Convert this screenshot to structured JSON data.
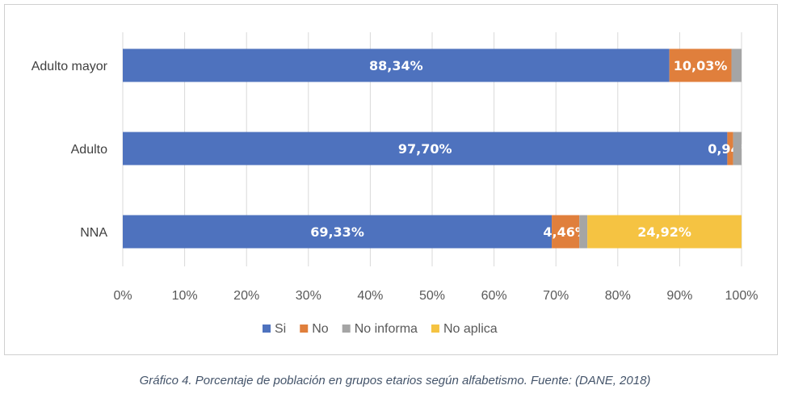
{
  "chart_data": {
    "type": "bar",
    "orientation": "horizontal",
    "stacked": true,
    "categories": [
      "Adulto mayor",
      "Adulto",
      "NNA"
    ],
    "series": [
      {
        "name": "Si",
        "color": "#4e72be",
        "values": [
          88.34,
          97.7,
          69.33
        ],
        "labels": [
          "88,34%",
          "97,70%",
          "69,33%"
        ]
      },
      {
        "name": "No",
        "color": "#e07f3c",
        "values": [
          10.03,
          0.94,
          4.46
        ],
        "labels": [
          "10,03%",
          "0,94%",
          "4,46%"
        ]
      },
      {
        "name": "No informa",
        "color": "#a5a5a5",
        "values": [
          1.63,
          1.36,
          1.29
        ],
        "labels": [
          "",
          "",
          ""
        ]
      },
      {
        "name": "No aplica",
        "color": "#f5c342",
        "values": [
          0,
          0,
          24.92
        ],
        "labels": [
          "",
          "",
          "24,92%"
        ]
      }
    ],
    "xlim": [
      0,
      100
    ],
    "x_ticks": [
      "0%",
      "10%",
      "20%",
      "30%",
      "40%",
      "50%",
      "60%",
      "70%",
      "80%",
      "90%",
      "100%"
    ],
    "grid": true,
    "legend_position": "bottom"
  },
  "caption": "Gráfico 4. Porcentaje de población en grupos etarios según alfabetismo. Fuente: (DANE, 2018)"
}
